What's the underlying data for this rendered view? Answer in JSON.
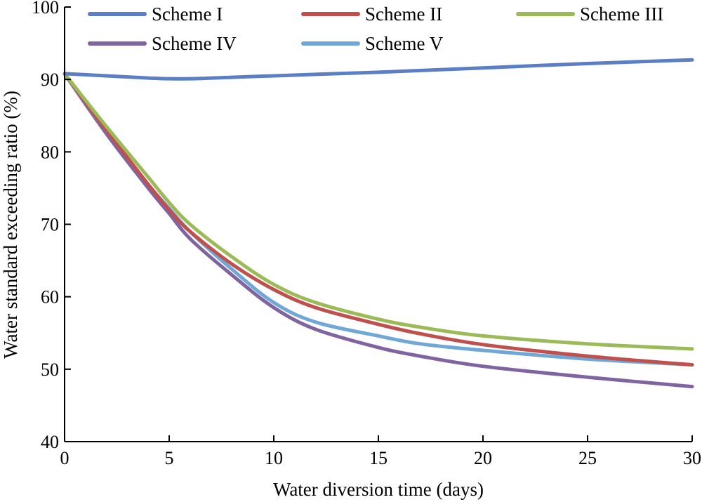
{
  "chart_data": {
    "type": "line",
    "title": "",
    "xlabel": "Water diversion time (days)",
    "ylabel": "Water standard exceeding ratio (%)",
    "xlim": [
      0,
      30
    ],
    "ylim": [
      40,
      100
    ],
    "xticks": [
      0,
      5,
      10,
      15,
      20,
      25,
      30
    ],
    "yticks": [
      40,
      50,
      60,
      70,
      80,
      90,
      100
    ],
    "grid": false,
    "legend_position": "top",
    "series": [
      {
        "name": "Scheme I",
        "color": "#5B7EC4",
        "x": [
          0,
          2,
          4,
          5,
          6,
          8,
          10,
          12,
          15,
          20,
          25,
          30
        ],
        "y": [
          90.8,
          90.5,
          90.2,
          90.1,
          90.1,
          90.3,
          90.5,
          90.7,
          91.0,
          91.6,
          92.2,
          92.7
        ]
      },
      {
        "name": "Scheme II",
        "color": "#C0504D",
        "x": [
          0,
          2,
          4,
          5,
          6,
          8,
          10,
          12,
          15,
          17,
          20,
          25,
          30
        ],
        "y": [
          90.8,
          83.0,
          75.5,
          72.0,
          69.0,
          64.5,
          61.0,
          58.5,
          56.2,
          54.9,
          53.4,
          51.8,
          50.6
        ]
      },
      {
        "name": "Scheme III",
        "color": "#9BBB59",
        "x": [
          0,
          2,
          4,
          5,
          6,
          8,
          10,
          12,
          15,
          17,
          20,
          25,
          30
        ],
        "y": [
          90.8,
          83.5,
          76.5,
          73.0,
          70.0,
          65.5,
          61.7,
          59.2,
          56.9,
          55.8,
          54.6,
          53.5,
          52.8
        ]
      },
      {
        "name": "Scheme IV",
        "color": "#8064A2",
        "x": [
          0,
          2,
          4,
          5,
          6,
          8,
          10,
          12,
          15,
          17,
          20,
          25,
          30
        ],
        "y": [
          90.8,
          82.5,
          75.0,
          71.5,
          68.0,
          63.0,
          58.5,
          55.5,
          53.0,
          51.8,
          50.4,
          48.9,
          47.6
        ]
      },
      {
        "name": "Scheme V",
        "color": "#6FA8D6",
        "x": [
          0,
          2,
          4,
          5,
          6,
          8,
          10,
          12,
          15,
          17,
          20,
          25,
          30
        ],
        "y": [
          90.8,
          83.0,
          75.5,
          72.2,
          69.0,
          63.8,
          59.2,
          56.5,
          54.6,
          53.5,
          52.6,
          51.4,
          50.6
        ]
      }
    ]
  }
}
